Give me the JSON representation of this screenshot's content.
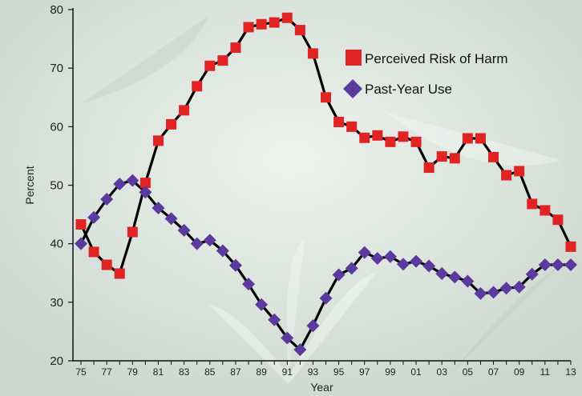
{
  "chart_data": {
    "type": "line",
    "title": "",
    "xlabel": "Year",
    "ylabel": "Percent",
    "ylim": [
      20,
      80
    ],
    "yticks": [
      20,
      30,
      40,
      50,
      60,
      70,
      80
    ],
    "xlim": [
      1975,
      2013
    ],
    "x": [
      1975,
      1976,
      1977,
      1978,
      1979,
      1980,
      1981,
      1982,
      1983,
      1984,
      1985,
      1986,
      1987,
      1988,
      1989,
      1990,
      1991,
      1992,
      1993,
      1994,
      1995,
      1996,
      1997,
      1998,
      1999,
      2000,
      2001,
      2002,
      2003,
      2004,
      2005,
      2006,
      2007,
      2008,
      2009,
      2010,
      2011,
      2012,
      2013
    ],
    "xtick_values": [
      1975,
      1977,
      1979,
      1981,
      1983,
      1985,
      1987,
      1989,
      1991,
      1993,
      1995,
      1997,
      1999,
      2001,
      2003,
      2005,
      2007,
      2009,
      2011,
      2013
    ],
    "xtick_labels": [
      "75",
      "77",
      "79",
      "81",
      "83",
      "85",
      "87",
      "89",
      "91",
      "93",
      "95",
      "97",
      "99",
      "01",
      "03",
      "05",
      "07",
      "09",
      "11",
      "13"
    ],
    "grid": false,
    "legend_position": "top-right",
    "series": [
      {
        "name": "Perceived Risk of Harm",
        "marker": "square",
        "color": "#e02424",
        "values": [
          43.3,
          38.6,
          36.4,
          34.9,
          42.0,
          50.4,
          57.6,
          60.4,
          62.8,
          66.9,
          70.4,
          71.3,
          73.5,
          77.0,
          77.5,
          77.8,
          78.6,
          76.5,
          72.5,
          65.0,
          60.8,
          60.0,
          58.1,
          58.5,
          57.4,
          58.3,
          57.4,
          53.0,
          54.9,
          54.6,
          58.0,
          58.0,
          54.8,
          51.7,
          52.4,
          46.8,
          45.7,
          44.1,
          39.5
        ]
      },
      {
        "name": "Past-Year Use",
        "marker": "diamond",
        "color": "#5b3a9e",
        "values": [
          40.0,
          44.5,
          47.6,
          50.2,
          50.8,
          48.8,
          46.1,
          44.3,
          42.3,
          40.0,
          40.6,
          38.8,
          36.3,
          33.1,
          29.6,
          27.0,
          23.9,
          21.9,
          26.0,
          30.7,
          34.7,
          35.8,
          38.5,
          37.5,
          37.8,
          36.5,
          37.0,
          36.2,
          34.9,
          34.3,
          33.6,
          31.5,
          31.7,
          32.4,
          32.6,
          34.8,
          36.4,
          36.4,
          36.4
        ]
      }
    ]
  }
}
